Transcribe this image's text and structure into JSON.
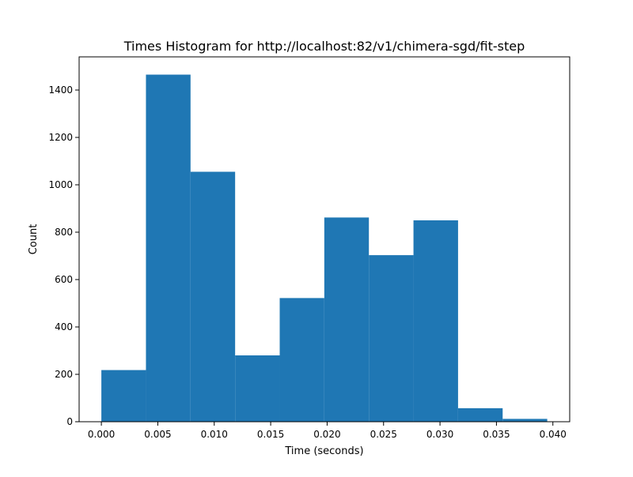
{
  "chart_data": {
    "type": "bar",
    "title": "Times Histogram for http://localhost:82/v1/chimera-sgd/fit-step",
    "xlabel": "Time (seconds)",
    "ylabel": "Count",
    "xlim": [
      -0.00197,
      0.04149
    ],
    "ylim": [
      0,
      1540
    ],
    "bin_edges": [
      0.0,
      0.00395,
      0.0079,
      0.01185,
      0.0158,
      0.01975,
      0.0237,
      0.02765,
      0.0316,
      0.03555,
      0.0395
    ],
    "values": [
      218,
      1465,
      1055,
      280,
      522,
      862,
      703,
      850,
      57,
      12
    ],
    "xticks": [
      0.0,
      0.005,
      0.01,
      0.015,
      0.02,
      0.025,
      0.03,
      0.035,
      0.04
    ],
    "xtick_labels": [
      "0.000",
      "0.005",
      "0.010",
      "0.015",
      "0.020",
      "0.025",
      "0.030",
      "0.035",
      "0.040"
    ],
    "yticks": [
      0,
      200,
      400,
      600,
      800,
      1000,
      1200,
      1400
    ],
    "ytick_labels": [
      "0",
      "200",
      "400",
      "600",
      "800",
      "1000",
      "1200",
      "1400"
    ],
    "bar_color": "#1f77b4",
    "grid": false
  }
}
